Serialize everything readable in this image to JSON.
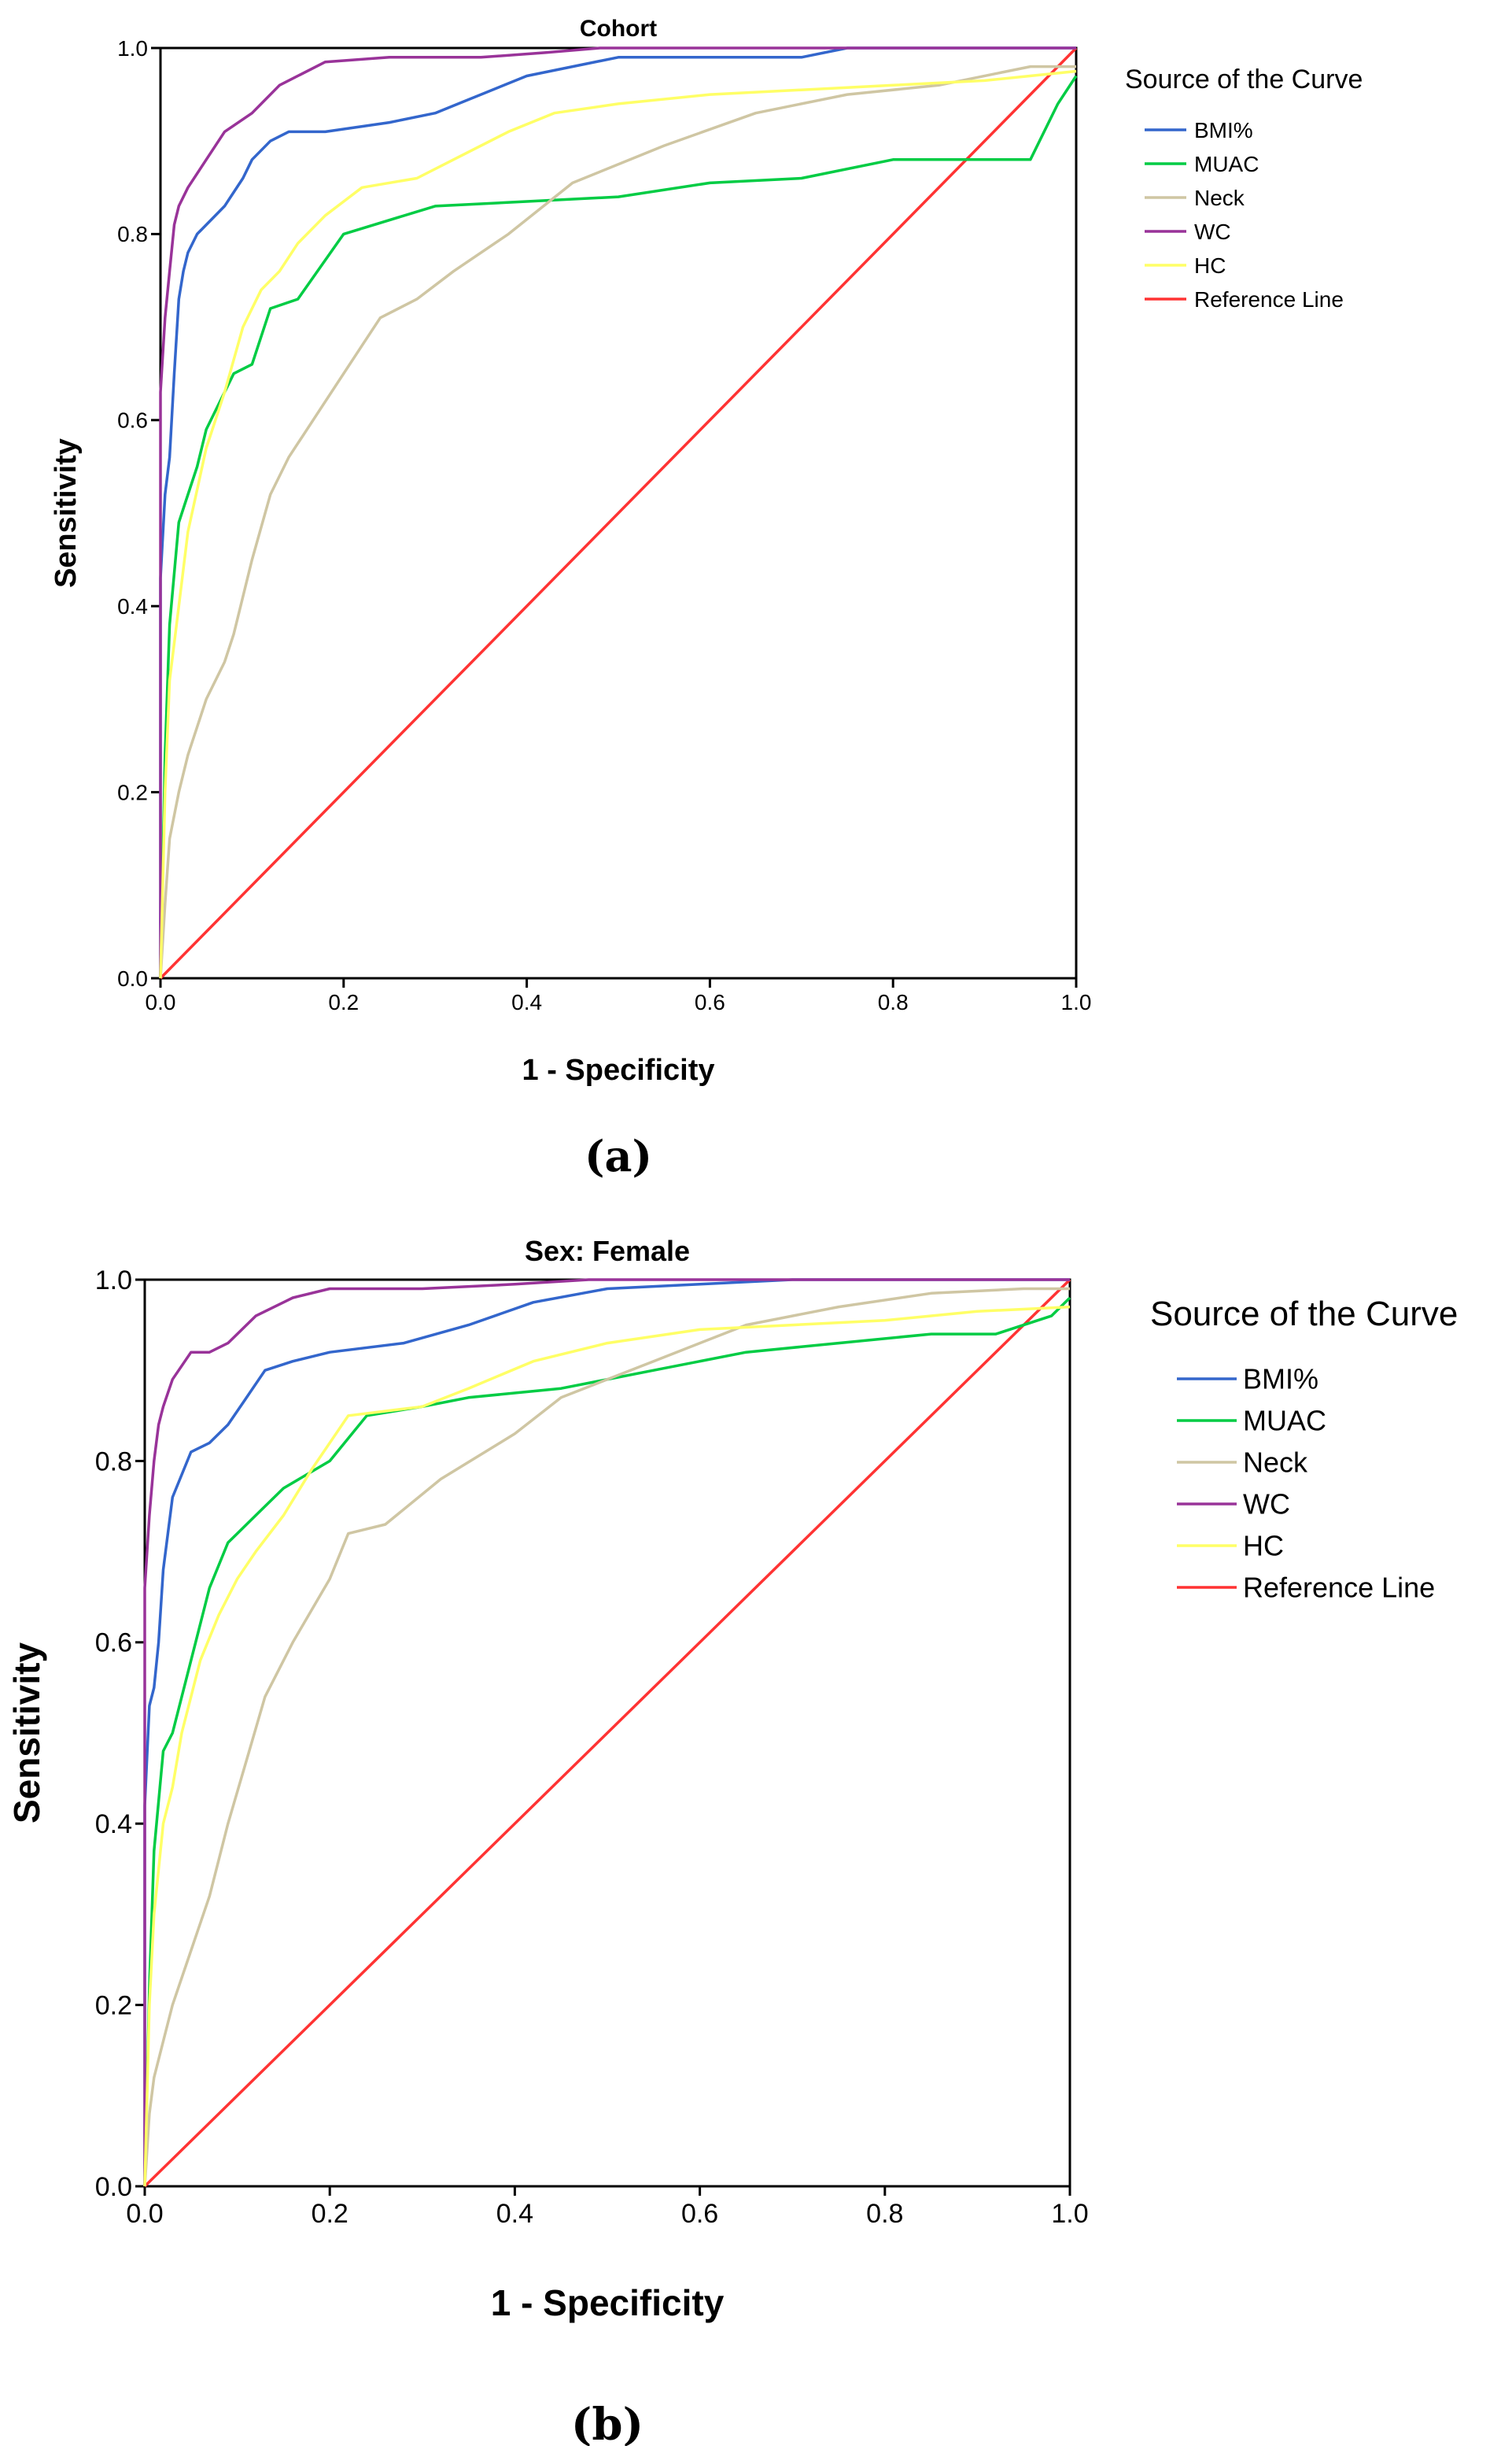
{
  "chart_data": [
    {
      "type": "line",
      "title": "Cohort",
      "caption": "(a)",
      "xlabel": "1 - Specificity",
      "ylabel": "Sensitivity",
      "xlim": [
        0,
        1
      ],
      "ylim": [
        0,
        1
      ],
      "xticks": [
        "0.0",
        "0.2",
        "0.4",
        "0.6",
        "0.8",
        "1.0"
      ],
      "yticks": [
        "0.0",
        "0.2",
        "0.4",
        "0.6",
        "0.8",
        "1.0"
      ],
      "legend_title": "Source of the Curve",
      "legend_position": "right",
      "series": [
        {
          "name": "BMI%",
          "color": "#3366cc",
          "x": [
            0,
            0,
            0.005,
            0.01,
            0.015,
            0.02,
            0.025,
            0.03,
            0.04,
            0.05,
            0.07,
            0.09,
            0.1,
            0.12,
            0.14,
            0.18,
            0.25,
            0.3,
            0.35,
            0.4,
            0.45,
            0.5,
            0.6,
            0.7,
            0.75,
            1.0
          ],
          "y": [
            0,
            0.43,
            0.52,
            0.56,
            0.65,
            0.73,
            0.76,
            0.78,
            0.8,
            0.81,
            0.83,
            0.86,
            0.88,
            0.9,
            0.91,
            0.91,
            0.92,
            0.93,
            0.95,
            0.97,
            0.98,
            0.99,
            0.99,
            0.99,
            1.0,
            1.0
          ]
        },
        {
          "name": "MUAC",
          "color": "#00cc44",
          "x": [
            0,
            0.005,
            0.01,
            0.02,
            0.03,
            0.04,
            0.05,
            0.07,
            0.08,
            0.1,
            0.12,
            0.15,
            0.2,
            0.3,
            0.4,
            0.5,
            0.6,
            0.7,
            0.8,
            0.9,
            0.95,
            0.98,
            1.0
          ],
          "y": [
            0,
            0.24,
            0.38,
            0.49,
            0.52,
            0.55,
            0.59,
            0.63,
            0.65,
            0.66,
            0.72,
            0.73,
            0.8,
            0.83,
            0.835,
            0.84,
            0.855,
            0.86,
            0.88,
            0.88,
            0.88,
            0.94,
            0.97
          ]
        },
        {
          "name": "Neck",
          "color": "#cfc6a3",
          "x": [
            0,
            0.005,
            0.01,
            0.02,
            0.03,
            0.05,
            0.07,
            0.08,
            0.1,
            0.12,
            0.14,
            0.18,
            0.22,
            0.24,
            0.28,
            0.32,
            0.38,
            0.45,
            0.55,
            0.65,
            0.75,
            0.85,
            0.95,
            1.0
          ],
          "y": [
            0,
            0.08,
            0.15,
            0.2,
            0.24,
            0.3,
            0.34,
            0.37,
            0.45,
            0.52,
            0.56,
            0.62,
            0.68,
            0.71,
            0.73,
            0.76,
            0.8,
            0.855,
            0.895,
            0.93,
            0.95,
            0.96,
            0.98,
            0.98
          ]
        },
        {
          "name": "WC",
          "color": "#993399",
          "x": [
            0,
            0,
            0.005,
            0.01,
            0.015,
            0.02,
            0.03,
            0.05,
            0.07,
            0.1,
            0.13,
            0.18,
            0.25,
            0.35,
            0.42,
            0.48,
            0.5,
            1.0
          ],
          "y": [
            0,
            0.63,
            0.71,
            0.76,
            0.81,
            0.83,
            0.85,
            0.88,
            0.91,
            0.93,
            0.96,
            0.985,
            0.99,
            0.99,
            0.995,
            1.0,
            1.0,
            1.0
          ]
        },
        {
          "name": "HC",
          "color": "#ffff66",
          "x": [
            0,
            0.005,
            0.01,
            0.02,
            0.03,
            0.05,
            0.07,
            0.09,
            0.11,
            0.13,
            0.15,
            0.18,
            0.22,
            0.28,
            0.32,
            0.38,
            0.43,
            0.5,
            0.6,
            0.7,
            0.8,
            0.9,
            1.0
          ],
          "y": [
            0,
            0.2,
            0.32,
            0.4,
            0.48,
            0.57,
            0.63,
            0.7,
            0.74,
            0.76,
            0.79,
            0.82,
            0.85,
            0.86,
            0.88,
            0.91,
            0.93,
            0.94,
            0.95,
            0.955,
            0.96,
            0.965,
            0.975
          ]
        },
        {
          "name": "Reference Line",
          "color": "#ff3333",
          "x": [
            0,
            1
          ],
          "y": [
            0,
            1
          ]
        }
      ]
    },
    {
      "type": "line",
      "title": "Sex: Female",
      "caption": "(b)",
      "xlabel": "1 - Specificity",
      "ylabel": "Sensitivity",
      "xlim": [
        0,
        1
      ],
      "ylim": [
        0,
        1
      ],
      "xticks": [
        "0.0",
        "0.2",
        "0.4",
        "0.6",
        "0.8",
        "1.0"
      ],
      "yticks": [
        "0.0",
        "0.2",
        "0.4",
        "0.6",
        "0.8",
        "1.0"
      ],
      "legend_title": "Source of the Curve",
      "legend_position": "right",
      "series": [
        {
          "name": "BMI%",
          "color": "#3366cc",
          "x": [
            0,
            0,
            0.005,
            0.01,
            0.015,
            0.02,
            0.03,
            0.05,
            0.07,
            0.09,
            0.11,
            0.13,
            0.16,
            0.2,
            0.28,
            0.35,
            0.42,
            0.5,
            0.6,
            0.7,
            1.0
          ],
          "y": [
            0,
            0.42,
            0.53,
            0.55,
            0.6,
            0.68,
            0.76,
            0.81,
            0.82,
            0.84,
            0.87,
            0.9,
            0.91,
            0.92,
            0.93,
            0.95,
            0.975,
            0.99,
            0.995,
            1.0,
            1.0
          ]
        },
        {
          "name": "MUAC",
          "color": "#00cc44",
          "x": [
            0,
            0.005,
            0.01,
            0.02,
            0.03,
            0.05,
            0.07,
            0.09,
            0.1,
            0.12,
            0.15,
            0.2,
            0.24,
            0.3,
            0.35,
            0.45,
            0.55,
            0.65,
            0.75,
            0.85,
            0.92,
            0.98,
            1.0
          ],
          "y": [
            0,
            0.22,
            0.37,
            0.48,
            0.5,
            0.58,
            0.66,
            0.71,
            0.72,
            0.74,
            0.77,
            0.8,
            0.85,
            0.86,
            0.87,
            0.88,
            0.9,
            0.92,
            0.93,
            0.94,
            0.94,
            0.96,
            0.98
          ]
        },
        {
          "name": "Neck",
          "color": "#cfc6a3",
          "x": [
            0,
            0.005,
            0.01,
            0.02,
            0.03,
            0.05,
            0.07,
            0.09,
            0.11,
            0.13,
            0.16,
            0.2,
            0.22,
            0.26,
            0.32,
            0.4,
            0.45,
            0.55,
            0.65,
            0.75,
            0.85,
            0.95,
            1.0
          ],
          "y": [
            0,
            0.08,
            0.12,
            0.16,
            0.2,
            0.26,
            0.32,
            0.4,
            0.47,
            0.54,
            0.6,
            0.67,
            0.72,
            0.73,
            0.78,
            0.83,
            0.87,
            0.91,
            0.95,
            0.97,
            0.985,
            0.99,
            0.99
          ]
        },
        {
          "name": "WC",
          "color": "#993399",
          "x": [
            0,
            0,
            0.005,
            0.01,
            0.015,
            0.02,
            0.03,
            0.05,
            0.07,
            0.09,
            0.12,
            0.16,
            0.2,
            0.3,
            0.4,
            0.48,
            0.5,
            1.0
          ],
          "y": [
            0,
            0.66,
            0.74,
            0.8,
            0.84,
            0.86,
            0.89,
            0.92,
            0.92,
            0.93,
            0.96,
            0.98,
            0.99,
            0.99,
            0.995,
            1.0,
            1.0,
            1.0
          ]
        },
        {
          "name": "HC",
          "color": "#ffff66",
          "x": [
            0,
            0.005,
            0.01,
            0.02,
            0.03,
            0.04,
            0.05,
            0.06,
            0.08,
            0.1,
            0.12,
            0.15,
            0.18,
            0.22,
            0.3,
            0.35,
            0.42,
            0.5,
            0.6,
            0.7,
            0.8,
            0.9,
            1.0
          ],
          "y": [
            0,
            0.2,
            0.3,
            0.4,
            0.44,
            0.5,
            0.54,
            0.58,
            0.63,
            0.67,
            0.7,
            0.74,
            0.79,
            0.85,
            0.86,
            0.88,
            0.91,
            0.93,
            0.945,
            0.95,
            0.955,
            0.965,
            0.97
          ]
        },
        {
          "name": "Reference Line",
          "color": "#ff3333",
          "x": [
            0,
            1
          ],
          "y": [
            0,
            1
          ]
        }
      ]
    }
  ]
}
